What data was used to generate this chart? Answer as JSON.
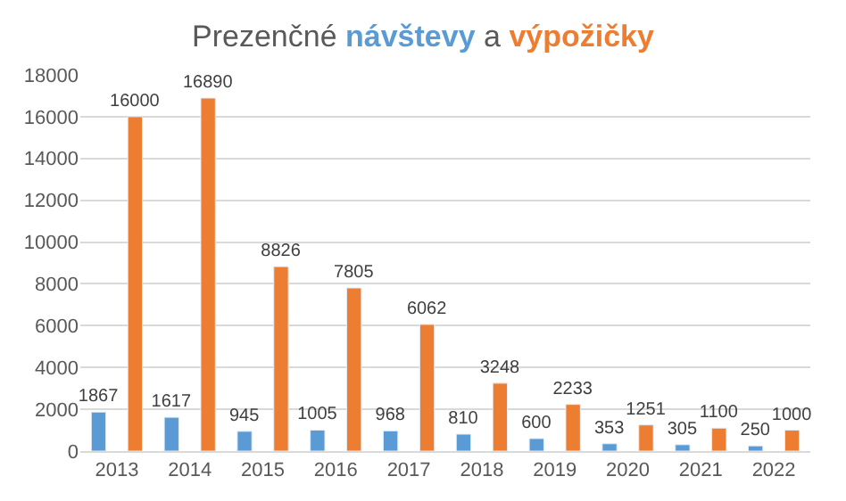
{
  "chart_data": {
    "type": "bar",
    "title": "Prezenčné návštevy a výpožičky",
    "categories": [
      "2013",
      "2014",
      "2015",
      "2016",
      "2017",
      "2018",
      "2019",
      "2020",
      "2021",
      "2022"
    ],
    "series": [
      {
        "color": "#5b9bd5",
        "values": [
          1867,
          1617,
          945,
          1005,
          968,
          810,
          600,
          353,
          305,
          250
        ]
      },
      {
        "color": "#ed7d31",
        "values": [
          16000,
          16890,
          8826,
          7805,
          6062,
          3248,
          2233,
          1251,
          1100,
          1000
        ]
      }
    ],
    "ylim": [
      0,
      18000
    ],
    "yticks": [
      0,
      2000,
      4000,
      6000,
      8000,
      10000,
      12000,
      14000,
      16000,
      18000
    ],
    "grid": "y",
    "data_labels": true
  }
}
